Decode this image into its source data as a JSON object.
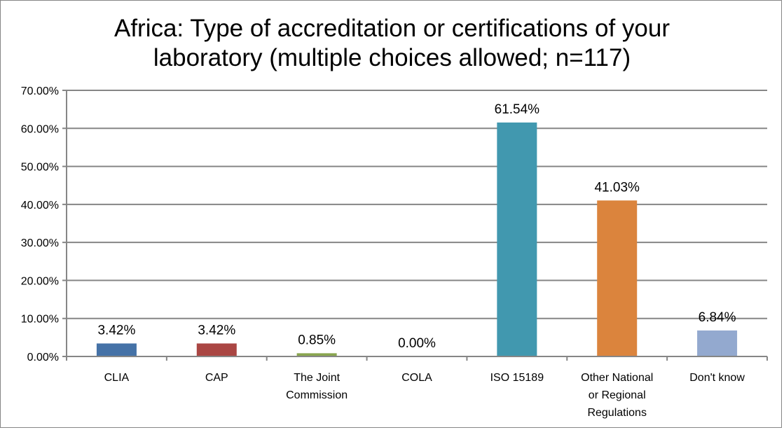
{
  "chart_data": {
    "type": "bar",
    "title": "Africa: Type of accreditation or certifications of your laboratory (multiple choices allowed; n=117)",
    "title_lines": [
      "Africa: Type of accreditation or certifications of your",
      "laboratory (multiple choices allowed; n=117)"
    ],
    "categories": [
      "CLIA",
      "CAP",
      "The Joint Commission",
      "COLA",
      "ISO 15189",
      "Other National or Regional Regulations",
      "Don't know"
    ],
    "category_lines": [
      [
        "CLIA"
      ],
      [
        "CAP"
      ],
      [
        "The Joint",
        "Commission"
      ],
      [
        "COLA"
      ],
      [
        "ISO 15189"
      ],
      [
        "Other National",
        "or Regional",
        "Regulations"
      ],
      [
        "Don't know"
      ]
    ],
    "values": [
      3.42,
      3.42,
      0.85,
      0.0,
      61.54,
      41.03,
      6.84
    ],
    "data_labels": [
      "3.42%",
      "3.42%",
      "0.85%",
      "0.00%",
      "61.54%",
      "41.03%",
      "6.84%"
    ],
    "colors": [
      "#4572A7",
      "#AA4643",
      "#89A54E",
      "#71588F",
      "#4198AF",
      "#DB843D",
      "#93A9CF"
    ],
    "ylim": [
      0,
      70
    ],
    "yticks": [
      "0.00%",
      "10.00%",
      "20.00%",
      "30.00%",
      "40.00%",
      "50.00%",
      "60.00%",
      "70.00%"
    ],
    "xlabel": "",
    "ylabel": "",
    "grid": true,
    "legend": "none"
  }
}
